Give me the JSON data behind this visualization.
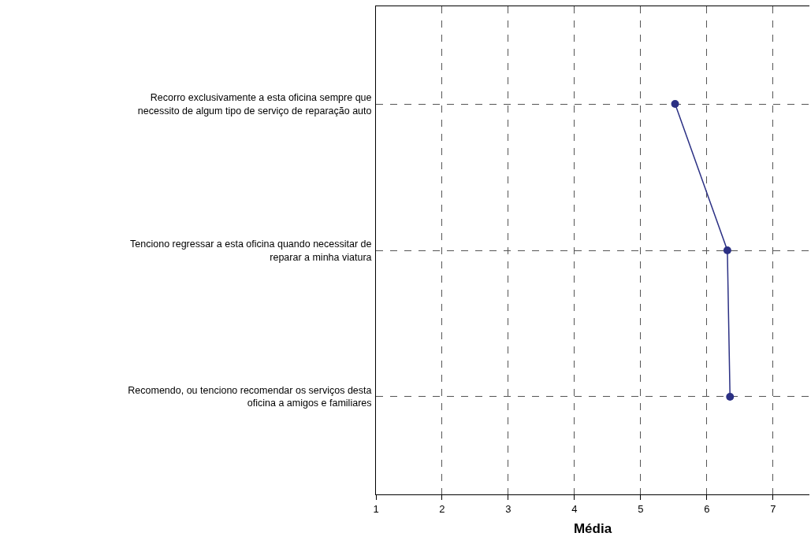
{
  "chart_data": {
    "type": "line",
    "orientation": "horizontal",
    "xlabel": "Média",
    "categories": [
      "Recorro exclusivamente a esta oficina sempre que necessito de algum tipo de serviço de reparação auto",
      "Tenciono regressar a esta oficina quando necessitar de reparar a minha viatura",
      "Recomendo, ou tenciono recomendar os serviços desta oficina a amigos e familiares"
    ],
    "values": [
      5.52,
      6.31,
      6.35
    ],
    "color": "#2b3084",
    "xlim": [
      1,
      7.55
    ],
    "xticks": [
      1,
      2,
      3,
      4,
      5,
      6,
      7
    ],
    "grid": true,
    "marker": "circle",
    "line_style": "solid"
  }
}
